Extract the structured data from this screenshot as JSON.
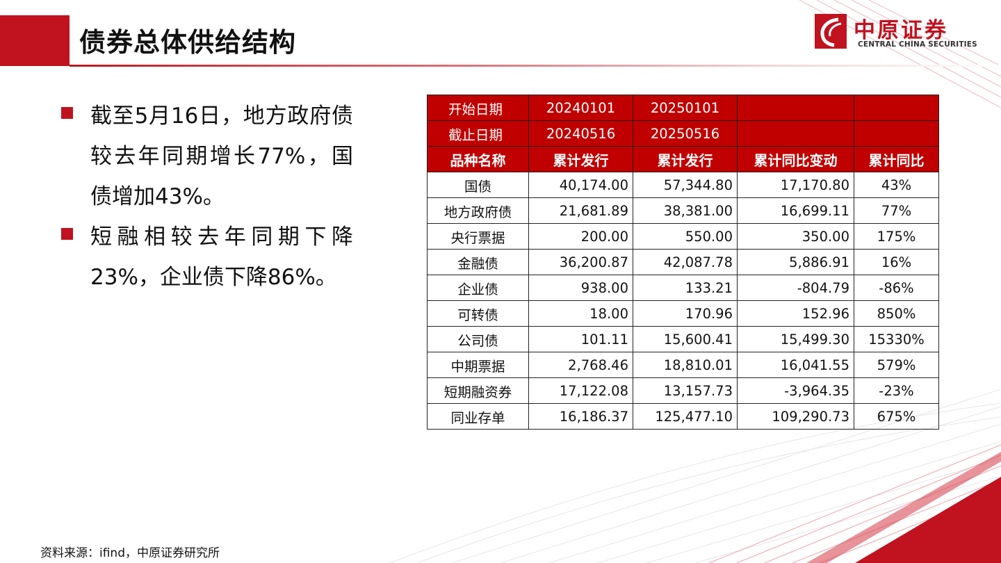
{
  "page": {
    "title": "债券总体供给结构",
    "brand_color": "#c1121f"
  },
  "logo": {
    "cn": "中原证券",
    "en": "CENTRAL CHINA SECURITIES"
  },
  "bullets": [
    {
      "text": "截至5月16日，地方政府债较去年同期增长77%，国债增加43%。"
    },
    {
      "text": "短融相较去年同期下降23%，企业债下降86%。"
    }
  ],
  "table": {
    "meta_rows": [
      {
        "label": "开始日期",
        "v1": "20240101",
        "v2": "20250101",
        "v3": "",
        "v4": ""
      },
      {
        "label": "截止日期",
        "v1": "20240516",
        "v2": "20250516",
        "v3": "",
        "v4": ""
      }
    ],
    "headers": [
      "品种名称",
      "累计发行",
      "累计发行",
      "累计同比变动",
      "累计同比"
    ],
    "rows": [
      [
        "国债",
        "40,174.00",
        "57,344.80",
        "17,170.80",
        "43%"
      ],
      [
        "地方政府债",
        "21,681.89",
        "38,381.00",
        "16,699.11",
        "77%"
      ],
      [
        "央行票据",
        "200.00",
        "550.00",
        "350.00",
        "175%"
      ],
      [
        "金融债",
        "36,200.87",
        "42,087.78",
        "5,886.91",
        "16%"
      ],
      [
        "企业债",
        "938.00",
        "133.21",
        "-804.79",
        "-86%"
      ],
      [
        "可转债",
        "18.00",
        "170.96",
        "152.96",
        "850%"
      ],
      [
        "公司债",
        "101.11",
        "15,600.41",
        "15,499.30",
        "15330%"
      ],
      [
        "中期票据",
        "2,768.46",
        "18,810.01",
        "16,041.55",
        "579%"
      ],
      [
        "短期融资券",
        "17,122.08",
        "13,157.73",
        "-3,964.35",
        "-23%"
      ],
      [
        "同业存单",
        "16,186.37",
        "125,477.10",
        "109,290.73",
        "675%"
      ]
    ]
  },
  "source": "资料来源：ifind，中原证券研究所"
}
